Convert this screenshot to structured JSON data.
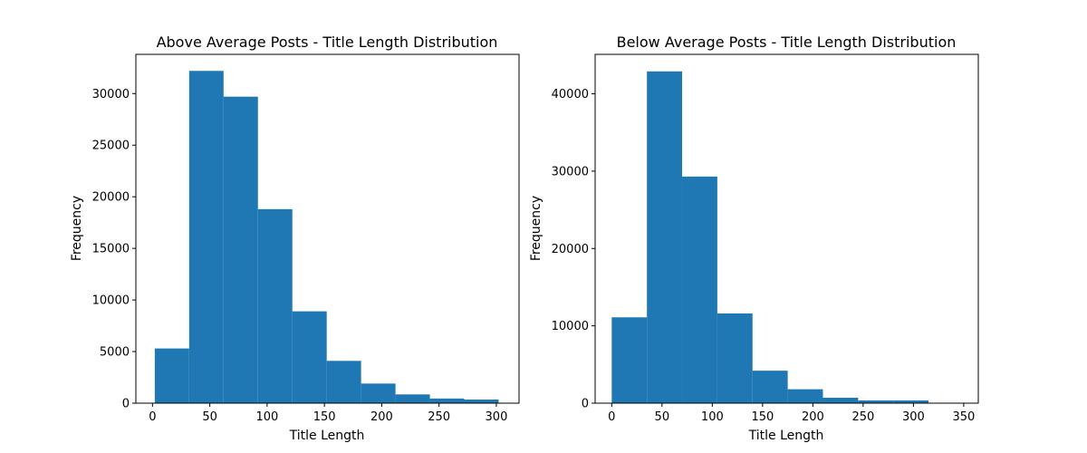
{
  "chart_data": [
    {
      "type": "bar",
      "title": "Above Average Posts - Title Length Distribution",
      "xlabel": "Title Length",
      "ylabel": "Frequency",
      "color": "#1f77b4",
      "xlim": [
        -14.5,
        319.8
      ],
      "ylim": [
        0,
        33800
      ],
      "xticks": [
        0,
        50,
        100,
        150,
        200,
        250,
        300
      ],
      "yticks": [
        0,
        5000,
        10000,
        15000,
        20000,
        25000,
        30000
      ],
      "bins": [
        {
          "x0": 2,
          "x1": 32,
          "value": 5300
        },
        {
          "x0": 32,
          "x1": 62,
          "value": 32200
        },
        {
          "x0": 62,
          "x1": 92,
          "value": 29700
        },
        {
          "x0": 92,
          "x1": 122,
          "value": 18800
        },
        {
          "x0": 122,
          "x1": 152,
          "value": 8900
        },
        {
          "x0": 152,
          "x1": 182,
          "value": 4100
        },
        {
          "x0": 182,
          "x1": 212,
          "value": 1900
        },
        {
          "x0": 212,
          "x1": 242,
          "value": 850
        },
        {
          "x0": 242,
          "x1": 272,
          "value": 450
        },
        {
          "x0": 272,
          "x1": 302,
          "value": 350
        }
      ]
    },
    {
      "type": "bar",
      "title": "Below Average Posts - Title Length Distribution",
      "xlabel": "Title Length",
      "ylabel": "Frequency",
      "color": "#1f77b4",
      "xlim": [
        -16.5,
        364.5
      ],
      "ylim": [
        0,
        45100
      ],
      "xticks": [
        0,
        50,
        100,
        150,
        200,
        250,
        300,
        350
      ],
      "yticks": [
        0,
        10000,
        20000,
        30000,
        40000
      ],
      "bins": [
        {
          "x0": 0,
          "x1": 35,
          "value": 11100
        },
        {
          "x0": 35,
          "x1": 70,
          "value": 42900
        },
        {
          "x0": 70,
          "x1": 105,
          "value": 29300
        },
        {
          "x0": 105,
          "x1": 140,
          "value": 11600
        },
        {
          "x0": 140,
          "x1": 175,
          "value": 4200
        },
        {
          "x0": 175,
          "x1": 210,
          "value": 1800
        },
        {
          "x0": 210,
          "x1": 245,
          "value": 700
        },
        {
          "x0": 245,
          "x1": 280,
          "value": 350
        },
        {
          "x0": 280,
          "x1": 315,
          "value": 350
        },
        {
          "x0": 315,
          "x1": 350,
          "value": 0
        }
      ]
    }
  ]
}
